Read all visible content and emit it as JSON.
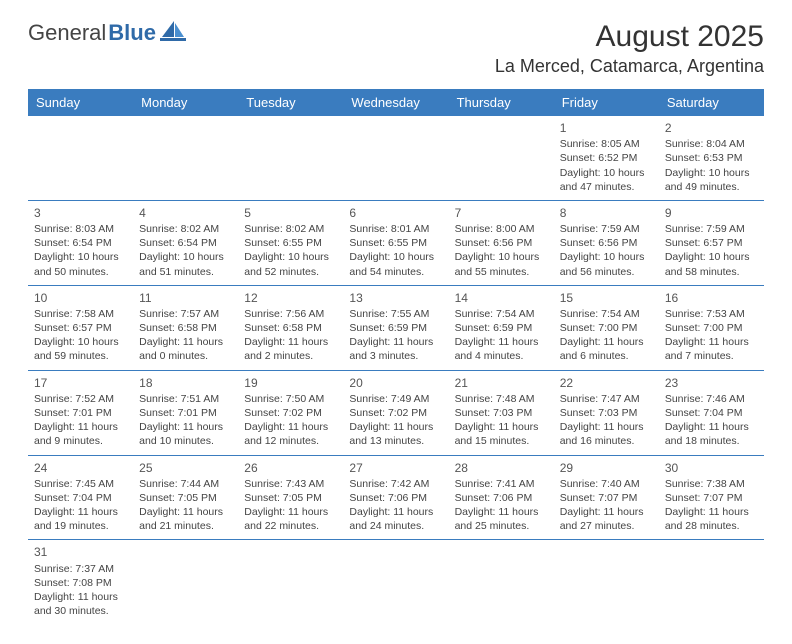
{
  "logo": {
    "text1": "General",
    "text2": "Blue"
  },
  "title": "August 2025",
  "location": "La Merced, Catamarca, Argentina",
  "colors": {
    "header_bg": "#3a7cbf",
    "header_fg": "#ffffff",
    "border": "#3a7cbf",
    "logo_blue": "#2f6aa8"
  },
  "day_headers": [
    "Sunday",
    "Monday",
    "Tuesday",
    "Wednesday",
    "Thursday",
    "Friday",
    "Saturday"
  ],
  "first_day_index": 5,
  "days_in_month": 31,
  "days": {
    "1": {
      "sunrise": "8:05 AM",
      "sunset": "6:52 PM",
      "daylight": "10 hours and 47 minutes."
    },
    "2": {
      "sunrise": "8:04 AM",
      "sunset": "6:53 PM",
      "daylight": "10 hours and 49 minutes."
    },
    "3": {
      "sunrise": "8:03 AM",
      "sunset": "6:54 PM",
      "daylight": "10 hours and 50 minutes."
    },
    "4": {
      "sunrise": "8:02 AM",
      "sunset": "6:54 PM",
      "daylight": "10 hours and 51 minutes."
    },
    "5": {
      "sunrise": "8:02 AM",
      "sunset": "6:55 PM",
      "daylight": "10 hours and 52 minutes."
    },
    "6": {
      "sunrise": "8:01 AM",
      "sunset": "6:55 PM",
      "daylight": "10 hours and 54 minutes."
    },
    "7": {
      "sunrise": "8:00 AM",
      "sunset": "6:56 PM",
      "daylight": "10 hours and 55 minutes."
    },
    "8": {
      "sunrise": "7:59 AM",
      "sunset": "6:56 PM",
      "daylight": "10 hours and 56 minutes."
    },
    "9": {
      "sunrise": "7:59 AM",
      "sunset": "6:57 PM",
      "daylight": "10 hours and 58 minutes."
    },
    "10": {
      "sunrise": "7:58 AM",
      "sunset": "6:57 PM",
      "daylight": "10 hours and 59 minutes."
    },
    "11": {
      "sunrise": "7:57 AM",
      "sunset": "6:58 PM",
      "daylight": "11 hours and 0 minutes."
    },
    "12": {
      "sunrise": "7:56 AM",
      "sunset": "6:58 PM",
      "daylight": "11 hours and 2 minutes."
    },
    "13": {
      "sunrise": "7:55 AM",
      "sunset": "6:59 PM",
      "daylight": "11 hours and 3 minutes."
    },
    "14": {
      "sunrise": "7:54 AM",
      "sunset": "6:59 PM",
      "daylight": "11 hours and 4 minutes."
    },
    "15": {
      "sunrise": "7:54 AM",
      "sunset": "7:00 PM",
      "daylight": "11 hours and 6 minutes."
    },
    "16": {
      "sunrise": "7:53 AM",
      "sunset": "7:00 PM",
      "daylight": "11 hours and 7 minutes."
    },
    "17": {
      "sunrise": "7:52 AM",
      "sunset": "7:01 PM",
      "daylight": "11 hours and 9 minutes."
    },
    "18": {
      "sunrise": "7:51 AM",
      "sunset": "7:01 PM",
      "daylight": "11 hours and 10 minutes."
    },
    "19": {
      "sunrise": "7:50 AM",
      "sunset": "7:02 PM",
      "daylight": "11 hours and 12 minutes."
    },
    "20": {
      "sunrise": "7:49 AM",
      "sunset": "7:02 PM",
      "daylight": "11 hours and 13 minutes."
    },
    "21": {
      "sunrise": "7:48 AM",
      "sunset": "7:03 PM",
      "daylight": "11 hours and 15 minutes."
    },
    "22": {
      "sunrise": "7:47 AM",
      "sunset": "7:03 PM",
      "daylight": "11 hours and 16 minutes."
    },
    "23": {
      "sunrise": "7:46 AM",
      "sunset": "7:04 PM",
      "daylight": "11 hours and 18 minutes."
    },
    "24": {
      "sunrise": "7:45 AM",
      "sunset": "7:04 PM",
      "daylight": "11 hours and 19 minutes."
    },
    "25": {
      "sunrise": "7:44 AM",
      "sunset": "7:05 PM",
      "daylight": "11 hours and 21 minutes."
    },
    "26": {
      "sunrise": "7:43 AM",
      "sunset": "7:05 PM",
      "daylight": "11 hours and 22 minutes."
    },
    "27": {
      "sunrise": "7:42 AM",
      "sunset": "7:06 PM",
      "daylight": "11 hours and 24 minutes."
    },
    "28": {
      "sunrise": "7:41 AM",
      "sunset": "7:06 PM",
      "daylight": "11 hours and 25 minutes."
    },
    "29": {
      "sunrise": "7:40 AM",
      "sunset": "7:07 PM",
      "daylight": "11 hours and 27 minutes."
    },
    "30": {
      "sunrise": "7:38 AM",
      "sunset": "7:07 PM",
      "daylight": "11 hours and 28 minutes."
    },
    "31": {
      "sunrise": "7:37 AM",
      "sunset": "7:08 PM",
      "daylight": "11 hours and 30 minutes."
    }
  },
  "labels": {
    "sunrise": "Sunrise:",
    "sunset": "Sunset:",
    "daylight": "Daylight:"
  }
}
